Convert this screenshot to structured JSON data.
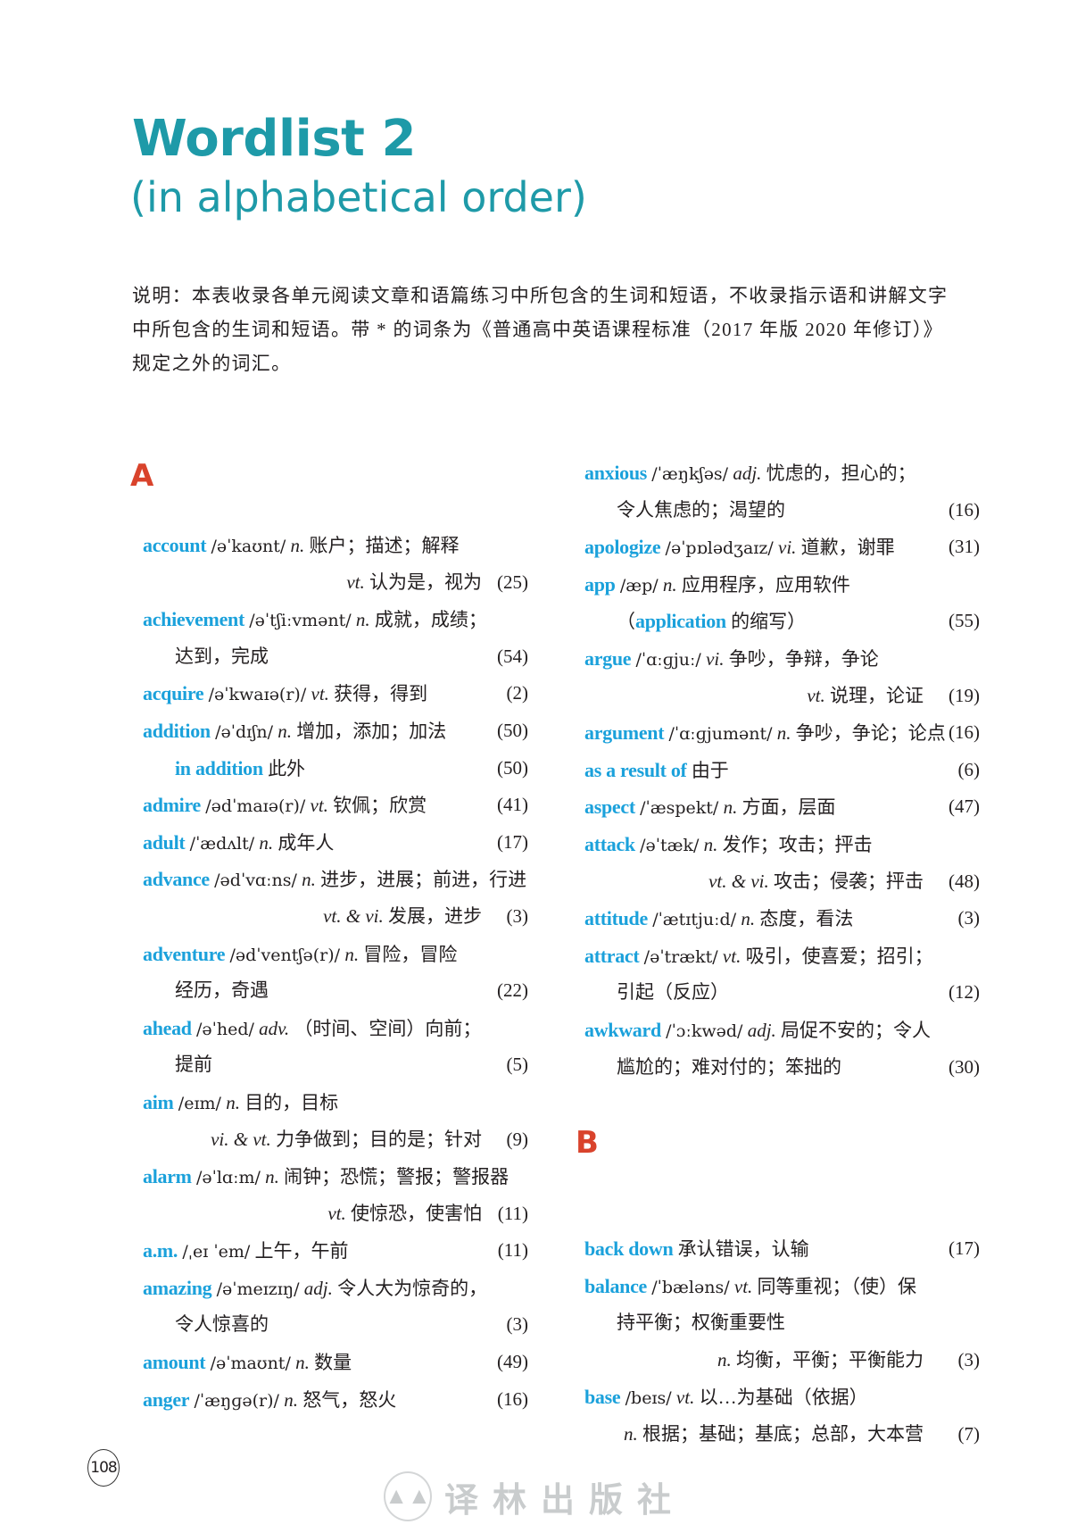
{
  "header": {
    "title": "Wordlist 2",
    "subtitle": "(in alphabetical order)"
  },
  "note": "说明：本表收录各单元阅读文章和语篇练习中所包含的生词和短语，不收录指示语和讲解文字中所包含的生词和短语。带 * 的词条为《普通高中英语课程标准（2017 年版 2020 年修订）》规定之外的词汇。",
  "colors": {
    "title": "#1e9aa8",
    "headword": "#1ba1db",
    "letter": "#d9432c"
  },
  "sections": {
    "a": "A",
    "b": "B"
  },
  "left_lines": [
    {
      "word": "account",
      "phon": "/əˈkaʊnt/",
      "pos": "n.",
      "text": "账户；描述；解释"
    },
    {
      "pos": "vt.",
      "text": "认为是，视为",
      "num": "(25)"
    },
    {
      "word": "achievement",
      "phon": "/əˈtʃiːvmənt/",
      "pos": "n.",
      "text": "成就，成绩；"
    },
    {
      "text": "达到，完成",
      "num": "(54)"
    },
    {
      "word": "acquire",
      "phon": "/əˈkwaɪə(r)/",
      "pos": "vt.",
      "text": "获得，得到",
      "num": "(2)"
    },
    {
      "word": "addition",
      "phon": "/əˈdɪʃn/",
      "pos": "n.",
      "text": "增加，添加；加法",
      "num": "(50)"
    },
    {
      "sub": "in addition",
      "text": "此外",
      "num": "(50)"
    },
    {
      "word": "admire",
      "phon": "/ədˈmaɪə(r)/",
      "pos": "vt.",
      "text": "钦佩；欣赏",
      "num": "(41)"
    },
    {
      "word": "adult",
      "phon": "/ˈædʌlt/",
      "pos": "n.",
      "text": "成年人",
      "num": "(17)"
    },
    {
      "word": "advance",
      "phon": "/ədˈvɑːns/",
      "pos": "n.",
      "text": "进步，进展；前进，行进"
    },
    {
      "pos": "vt. & vi.",
      "text": "发展，进步",
      "num": "(3)"
    },
    {
      "word": "adventure",
      "phon": "/ədˈventʃə(r)/",
      "pos": "n.",
      "text": "冒险，冒险"
    },
    {
      "text": "经历，奇遇",
      "num": "(22)"
    },
    {
      "word": "ahead",
      "phon": "/əˈhed/",
      "pos": "adv.",
      "text": "（时间、空间）向前；"
    },
    {
      "text": "提前",
      "num": "(5)"
    },
    {
      "word": "aim",
      "phon": "/eɪm/",
      "pos": "n.",
      "text": "目的，目标"
    },
    {
      "pos": "vi. & vt.",
      "text": "力争做到；目的是；针对",
      "num": "(9)"
    },
    {
      "word": "alarm",
      "phon": "/əˈlɑːm/",
      "pos": "n.",
      "text": "闹钟；恐慌；警报；警报器"
    },
    {
      "pos": "vt.",
      "text": "使惊恐，使害怕",
      "num": "(11)"
    },
    {
      "word": "a.m.",
      "phon": "/ˌeɪ ˈem/",
      "text": "上午，午前",
      "num": "(11)"
    },
    {
      "word": "amazing",
      "phon": "/əˈmeɪzɪŋ/",
      "pos": "adj.",
      "text": "令人大为惊奇的，"
    },
    {
      "text": "令人惊喜的",
      "num": "(3)"
    },
    {
      "word": "amount",
      "phon": "/əˈmaʊnt/",
      "pos": "n.",
      "text": "数量",
      "num": "(49)"
    },
    {
      "word": "anger",
      "phon": "/ˈæŋɡə(r)/",
      "pos": "n.",
      "text": "怒气，怒火",
      "num": "(16)"
    }
  ],
  "right_lines_a": [
    {
      "word": "anxious",
      "phon": "/ˈæŋkʃəs/",
      "pos": "adj.",
      "text": "忧虑的，担心的；"
    },
    {
      "text": "令人焦虑的；渴望的",
      "num": "(16)"
    },
    {
      "word": "apologize",
      "phon": "/əˈpɒlədʒaɪz/",
      "pos": "vi.",
      "text": "道歉，谢罪",
      "num": "(31)"
    },
    {
      "word": "app",
      "phon": "/æp/",
      "pos": "n.",
      "text": "应用程序，应用软件"
    },
    {
      "pre": "（",
      "sub": "application",
      "text": "的缩写）",
      "num": "(55)"
    },
    {
      "word": "argue",
      "phon": "/ˈɑːɡjuː/",
      "pos": "vi.",
      "text": "争吵，争辩，争论"
    },
    {
      "pos": "vt.",
      "text": "说理，论证",
      "num": "(19)"
    },
    {
      "word": "argument",
      "phon": "/ˈɑːɡjumənt/",
      "pos": "n.",
      "text": "争吵，争论；论点",
      "num": "(16)"
    },
    {
      "word": "as a result of",
      "text": "由于",
      "num": "(6)"
    },
    {
      "word": "aspect",
      "phon": "/ˈæspekt/",
      "pos": "n.",
      "text": "方面，层面",
      "num": "(47)"
    },
    {
      "word": "attack",
      "phon": "/əˈtæk/",
      "pos": "n.",
      "text": "发作；攻击；抨击"
    },
    {
      "pos": "vt. & vi.",
      "text": "攻击；侵袭；抨击",
      "num": "(48)"
    },
    {
      "word": "attitude",
      "phon": "/ˈætɪtjuːd/",
      "pos": "n.",
      "text": "态度，看法",
      "num": "(3)"
    },
    {
      "word": "attract",
      "phon": "/əˈtrækt/",
      "pos": "vt.",
      "text": "吸引，使喜爱；招引；"
    },
    {
      "text": "引起（反应）",
      "num": "(12)"
    },
    {
      "word": "awkward",
      "phon": "/ˈɔːkwəd/",
      "pos": "adj.",
      "text": "局促不安的；令人"
    },
    {
      "text": "尴尬的；难对付的；笨拙的",
      "num": "(30)"
    }
  ],
  "right_lines_b": [
    {
      "word": "back down",
      "text": "承认错误，认输",
      "num": "(17)"
    },
    {
      "word": "balance",
      "phon": "/ˈbæləns/",
      "pos": "vt.",
      "text": "同等重视；（使）保"
    },
    {
      "text": "持平衡；权衡重要性"
    },
    {
      "pos": "n.",
      "text": "均衡，平衡；平衡能力",
      "num": "(3)"
    },
    {
      "word": "base",
      "phon": "/beɪs/",
      "pos": "vt.",
      "text": "以…为基础（依据）"
    },
    {
      "pos": "n.",
      "text": "根据；基础；基底；总部，大本营",
      "num": "(7)"
    }
  ],
  "footer": {
    "page_number": "108",
    "publisher": "译林出版社",
    "logo_icon": "pine-trees-logo"
  }
}
